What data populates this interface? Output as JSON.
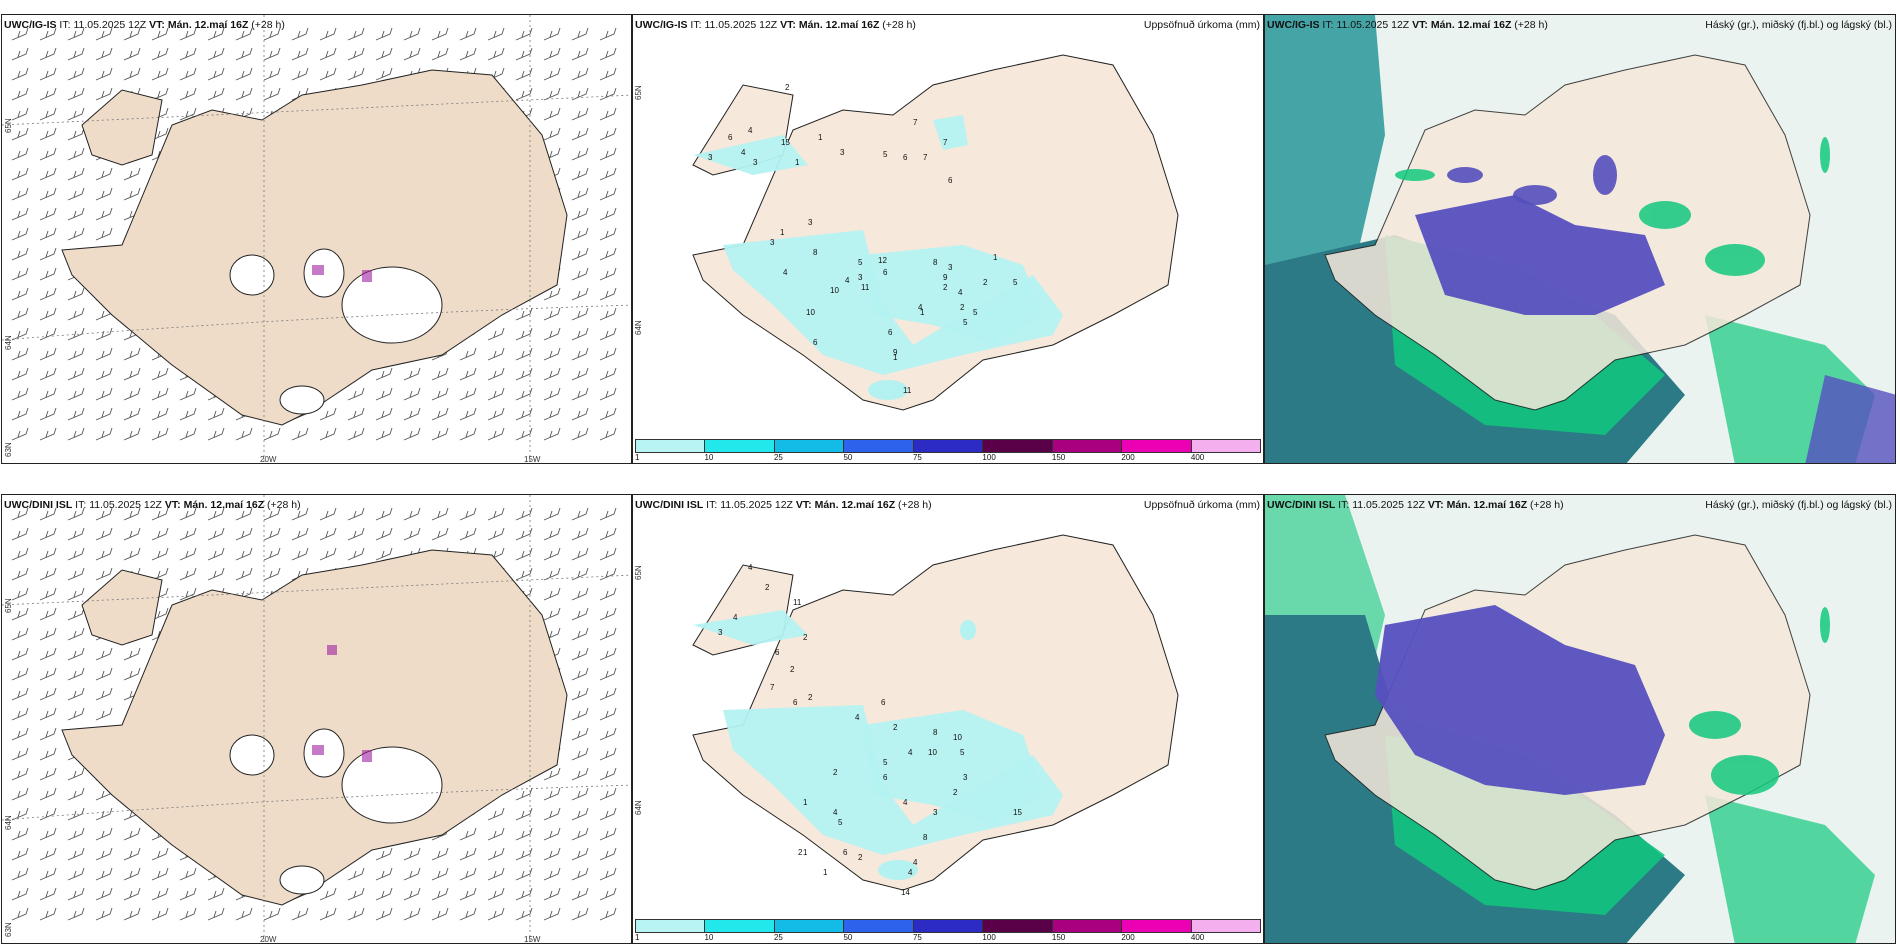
{
  "rows": [
    {
      "model": "UWC/IG-IS",
      "it_label": "IT:",
      "it_value": "11.05.2025 12Z",
      "vt_label": "VT:",
      "vt_value": "Mán. 12.maí 16Z",
      "lead": "(+28 h)"
    },
    {
      "model": "UWC/DINI ISL",
      "it_label": "IT:",
      "it_value": "11.05.2025 12Z",
      "vt_label": "VT:",
      "vt_value": "Mán. 12.maí 16Z",
      "lead": "(+28 h)"
    }
  ],
  "precip_title": "Uppsöfnuð úrkoma (mm)",
  "cloud_title": "Háský (gr.), miðský (fj.bl.) og lágský (bl.)",
  "wind_axis": {
    "lon_labels": [
      "20W",
      "15W"
    ],
    "lat_labels": [
      "65N",
      "64N",
      "63N"
    ]
  },
  "precip_axis": {
    "lat_labels": [
      "65N",
      "64N"
    ]
  },
  "colorbar": {
    "ticks": [
      "1",
      "10",
      "25",
      "50",
      "75",
      "100",
      "150",
      "200",
      "400"
    ],
    "colors": [
      "#b8f4f4",
      "#22e8ec",
      "#12bce6",
      "#2c62ec",
      "#2c2cc4",
      "#5a0048",
      "#a8007e",
      "#ec00b4",
      "#f4b0ee"
    ]
  },
  "precip_labels_top": [
    "2",
    "4",
    "3",
    "15",
    "6",
    "3",
    "4",
    "1",
    "1",
    "3",
    "1",
    "3",
    "7",
    "7",
    "6",
    "5",
    "6",
    "7",
    "3",
    "4",
    "9",
    "8",
    "8",
    "6",
    "3",
    "10",
    "10",
    "4",
    "5",
    "12",
    "11",
    "6",
    "1",
    "3",
    "2",
    "2",
    "5",
    "4",
    "4",
    "6",
    "9",
    "5",
    "1",
    "2",
    "1",
    "5",
    "11"
  ],
  "precip_labels_bottom": [
    "4",
    "2",
    "3",
    "11",
    "4",
    "6",
    "2",
    "2",
    "7",
    "6",
    "2",
    "4",
    "6",
    "2",
    "5",
    "8",
    "4",
    "10",
    "10",
    "5",
    "3",
    "2",
    "2",
    "1",
    "2",
    "6",
    "4",
    "3",
    "4",
    "5",
    "15",
    "6",
    "8",
    "2",
    "4",
    "4",
    "1",
    "1",
    "14"
  ],
  "colors": {
    "land": "#f6e8da",
    "land_wind": "#eedcc9",
    "sea_dark": "#2b7a86",
    "sea_teal": "#45a5a6",
    "low_green": "#12c87e",
    "mid_purple": "#5650bf",
    "precip_light": "#b4f2f2"
  }
}
